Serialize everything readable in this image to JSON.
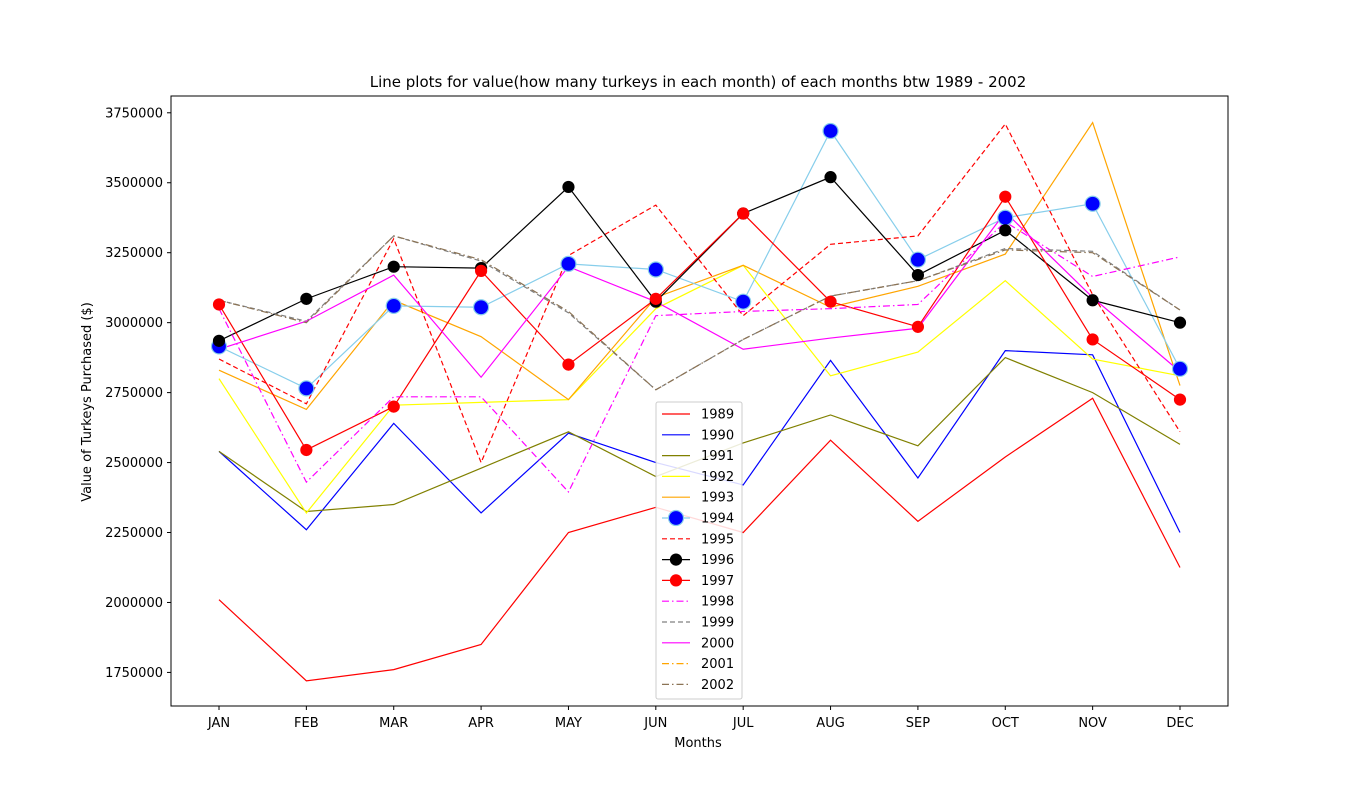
{
  "chart_data": {
    "type": "line",
    "title": "Line plots for value(how many turkeys in each month) of each months btw 1989 - 2002",
    "xlabel": "Months",
    "ylabel": "Value of Turkeys Purchased ($)",
    "categories": [
      "JAN",
      "FEB",
      "MAR",
      "APR",
      "MAY",
      "JUN",
      "JUL",
      "AUG",
      "SEP",
      "OCT",
      "NOV",
      "DEC"
    ],
    "ylim": [
      1630000,
      3810000
    ],
    "yticks": [
      1750000,
      2000000,
      2250000,
      2500000,
      2750000,
      3000000,
      3250000,
      3500000,
      3750000
    ],
    "ytick_labels": [
      "1750000",
      "2000000",
      "2250000",
      "2500000",
      "2750000",
      "3000000",
      "3250000",
      "3500000",
      "3750000"
    ],
    "grid": false,
    "legend_position": "lower center",
    "series": [
      {
        "name": "1989",
        "color": "#ff0000",
        "dash": "solid",
        "marker": "none",
        "values": [
          2010000,
          1720000,
          1760000,
          1850000,
          2250000,
          2340000,
          2250000,
          2580000,
          2290000,
          2520000,
          2730000,
          2125000
        ]
      },
      {
        "name": "1990",
        "color": "#0000ff",
        "dash": "solid",
        "marker": "none",
        "values": [
          2540000,
          2260000,
          2640000,
          2320000,
          2605000,
          2500000,
          2420000,
          2865000,
          2445000,
          2900000,
          2885000,
          2250000
        ]
      },
      {
        "name": "1991",
        "color": "#808000",
        "dash": "solid",
        "marker": "none",
        "values": [
          2540000,
          2325000,
          2350000,
          2480000,
          2610000,
          2450000,
          2570000,
          2670000,
          2560000,
          2875000,
          2750000,
          2565000
        ]
      },
      {
        "name": "1992",
        "color": "#ffff00",
        "dash": "solid",
        "marker": "none",
        "values": [
          2800000,
          2320000,
          2705000,
          2715000,
          2725000,
          3050000,
          3205000,
          2810000,
          2895000,
          3150000,
          2870000,
          2810000
        ]
      },
      {
        "name": "1993",
        "color": "#ffa500",
        "dash": "solid",
        "marker": "none",
        "values": [
          2830000,
          2690000,
          3080000,
          2950000,
          2725000,
          3090000,
          3205000,
          3055000,
          3130000,
          3245000,
          3715000,
          2775000
        ]
      },
      {
        "name": "1994",
        "color": "#87ceeb",
        "dash": "solid",
        "marker": "circle-blue",
        "values": [
          2915000,
          2765000,
          3060000,
          3055000,
          3210000,
          3190000,
          3075000,
          3685000,
          3225000,
          3375000,
          3425000,
          2835000
        ]
      },
      {
        "name": "1995",
        "color": "#ff0000",
        "dash": "dashed",
        "marker": "none",
        "values": [
          2870000,
          2710000,
          3300000,
          2500000,
          3240000,
          3420000,
          3025000,
          3280000,
          3310000,
          3710000,
          3100000,
          2610000
        ]
      },
      {
        "name": "1996",
        "color": "#000000",
        "dash": "solid",
        "marker": "circle-black",
        "values": [
          2935000,
          3085000,
          3200000,
          3195000,
          3485000,
          3075000,
          3390000,
          3520000,
          3170000,
          3330000,
          3080000,
          3000000
        ]
      },
      {
        "name": "1997",
        "color": "#ff0000",
        "dash": "solid",
        "marker": "circle-red",
        "values": [
          3065000,
          2545000,
          2700000,
          3185000,
          2850000,
          3085000,
          3390000,
          3075000,
          2985000,
          3450000,
          2940000,
          2725000
        ]
      },
      {
        "name": "1998",
        "color": "#ff00ff",
        "dash": "dashdot",
        "marker": "none",
        "values": [
          3050000,
          2430000,
          2735000,
          2735000,
          2395000,
          3025000,
          3040000,
          3050000,
          3065000,
          3360000,
          3165000,
          3235000
        ]
      },
      {
        "name": "1999",
        "color": "#808080",
        "dash": "dashed",
        "marker": "none",
        "values": [
          3080000,
          3005000,
          3310000,
          3220000,
          3035000,
          2760000,
          2940000,
          3095000,
          3150000,
          3265000,
          3255000,
          3045000
        ]
      },
      {
        "name": "2000",
        "color": "#ff00ff",
        "dash": "solid",
        "marker": "none",
        "values": [
          2905000,
          3005000,
          3170000,
          2805000,
          3200000,
          3075000,
          2905000,
          2945000,
          2980000,
          3395000,
          3090000,
          2825000
        ]
      },
      {
        "name": "2001",
        "color": "#ffa500",
        "dash": "dashdot",
        "marker": "none",
        "values": [
          null,
          null,
          null,
          null,
          null,
          null,
          null,
          null,
          null,
          null,
          null,
          null
        ]
      },
      {
        "name": "2002",
        "color": "#8b7355",
        "dash": "dashdot",
        "marker": "none",
        "values": [
          3080000,
          3000000,
          3310000,
          3225000,
          3040000,
          2760000,
          2940000,
          3095000,
          3150000,
          3260000,
          3250000,
          3045000
        ]
      }
    ]
  }
}
